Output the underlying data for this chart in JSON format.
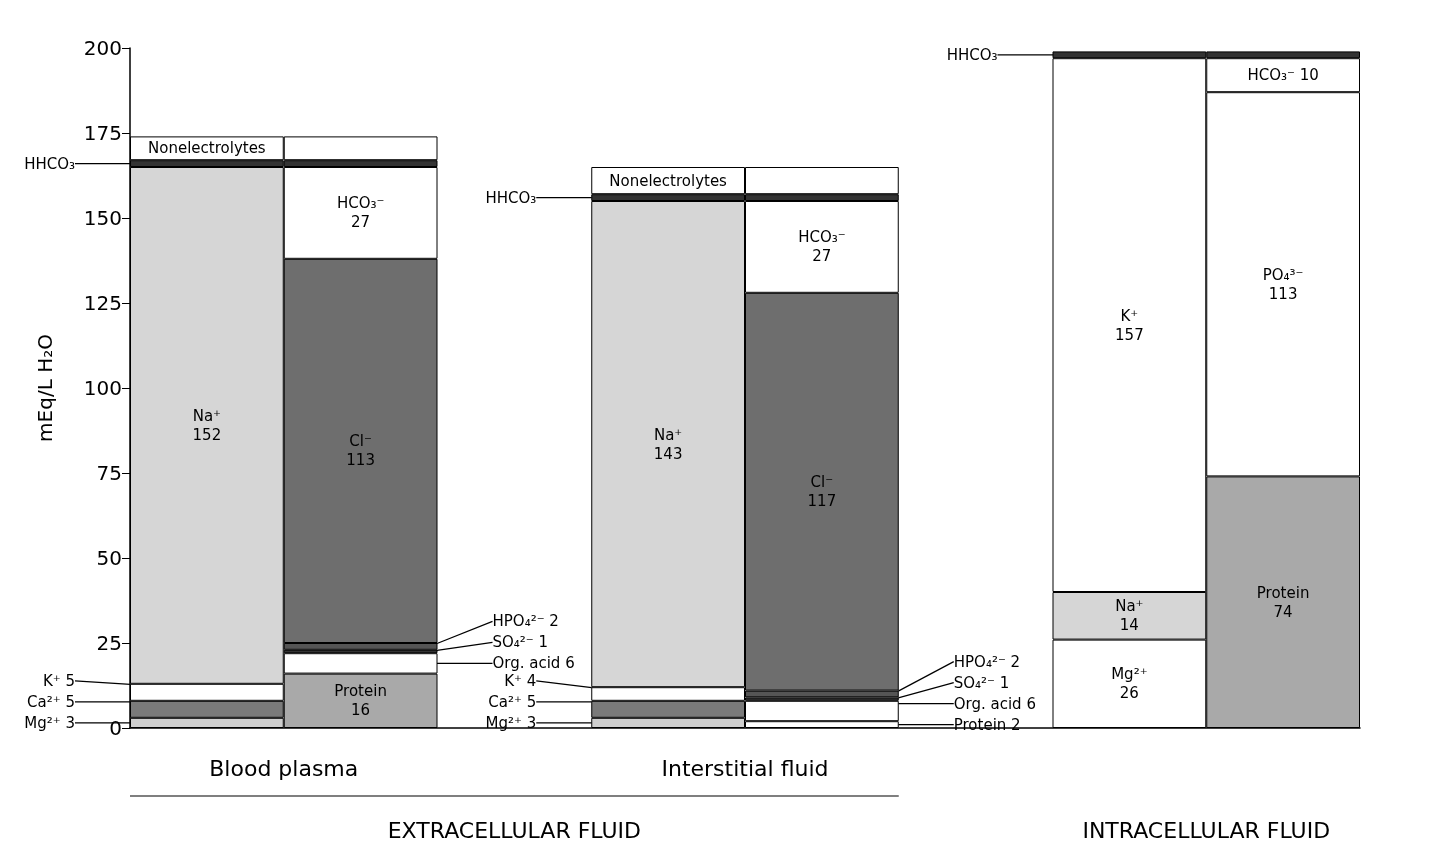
{
  "chart_data": {
    "type": "bar",
    "stacked": true,
    "ylabel": "mEq/L H₂O",
    "ylim": [
      0,
      200
    ],
    "yticks": [
      0,
      25,
      50,
      75,
      100,
      125,
      150,
      175,
      200
    ],
    "categories": [
      null,
      null,
      null,
      null,
      null,
      null,
      null,
      null
    ],
    "series": [
      {
        "values": [
          3,
          16,
          null,
          3,
          2,
          null,
          26,
          74
        ],
        "colors": [
          "#cfcfcf",
          "#a9a9a9",
          null,
          "#cfcfcf",
          "#ffffff",
          null,
          "#ffffff",
          "#a9a9a9"
        ],
        "value_labels": [
          "Mg²⁺ 3",
          "Protein\n16",
          null,
          "Mg²⁺ 3",
          "Protein 2",
          null,
          "Mg²⁺\n26",
          "Protein\n74"
        ]
      },
      {
        "values": [
          5,
          6,
          null,
          5,
          6,
          null,
          14,
          113
        ],
        "colors": [
          "#7a7a7a",
          "#ffffff",
          null,
          "#7a7a7a",
          "#ffffff",
          null,
          "#d6d6d6",
          "#ffffff"
        ],
        "value_labels": [
          "Ca²⁺ 5",
          "Org. acid 6",
          null,
          "Ca²⁺ 5",
          "Org. acid 6",
          null,
          "Na⁺\n14",
          "PO₄³⁻\n113"
        ]
      },
      {
        "values": [
          5,
          1,
          null,
          4,
          1,
          null,
          157,
          10
        ],
        "colors": [
          "#ffffff",
          "#333333",
          null,
          "#ffffff",
          "#333333",
          null,
          "#ffffff",
          "#ffffff"
        ],
        "value_labels": [
          "K⁺ 5",
          "SO₄²⁻ 1",
          null,
          "K⁺ 4",
          "SO₄²⁻ 1",
          null,
          "K⁺\n157",
          "HCO₃⁻ 10"
        ]
      },
      {
        "values": [
          152,
          2,
          null,
          143,
          2,
          null,
          2,
          2
        ],
        "colors": [
          "#d6d6d6",
          "#555555",
          null,
          "#d6d6d6",
          "#555555",
          null,
          "#333333",
          "#333333"
        ],
        "value_labels": [
          "Na⁺\n152",
          "HPO₄²⁻ 2",
          null,
          "Na⁺\n143",
          "HPO₄²⁻ 2",
          null,
          "HHCO₃",
          null
        ]
      },
      {
        "values": [
          2,
          113,
          null,
          2,
          117,
          null,
          null,
          null
        ],
        "colors": [
          "#333333",
          "#6e6e6e",
          null,
          "#333333",
          "#6e6e6e",
          null,
          null,
          null
        ],
        "value_labels": [
          "HHCO₃",
          "Cl⁻\n113",
          null,
          "HHCO₃",
          "Cl⁻\n117",
          null,
          null,
          null
        ]
      },
      {
        "values": [
          7,
          27,
          null,
          8,
          27,
          null,
          null,
          null
        ],
        "colors": [
          "#ffffff",
          "#ffffff",
          null,
          "#ffffff",
          "#ffffff",
          null,
          null,
          null
        ],
        "value_labels": [
          "Nonelectrolytes",
          "HCO₃⁻\n27",
          null,
          "Nonelectrolytes",
          "HCO₃⁻\n27",
          null,
          null,
          null
        ]
      },
      {
        "values": [
          null,
          2,
          null,
          null,
          2,
          null,
          null,
          null
        ],
        "colors": [
          null,
          "#333333",
          null,
          null,
          "#333333",
          null,
          null,
          null
        ]
      },
      {
        "values": [
          null,
          7,
          null,
          null,
          8,
          null,
          null,
          null
        ],
        "colors": [
          null,
          "#ffffff",
          null,
          null,
          "#ffffff",
          null,
          null,
          null
        ]
      }
    ],
    "annotations": [
      "Blood plasma",
      "Interstitial fluid",
      "EXTRACELLULAR FLUID",
      "INTRACELLULAR FLUID"
    ]
  }
}
